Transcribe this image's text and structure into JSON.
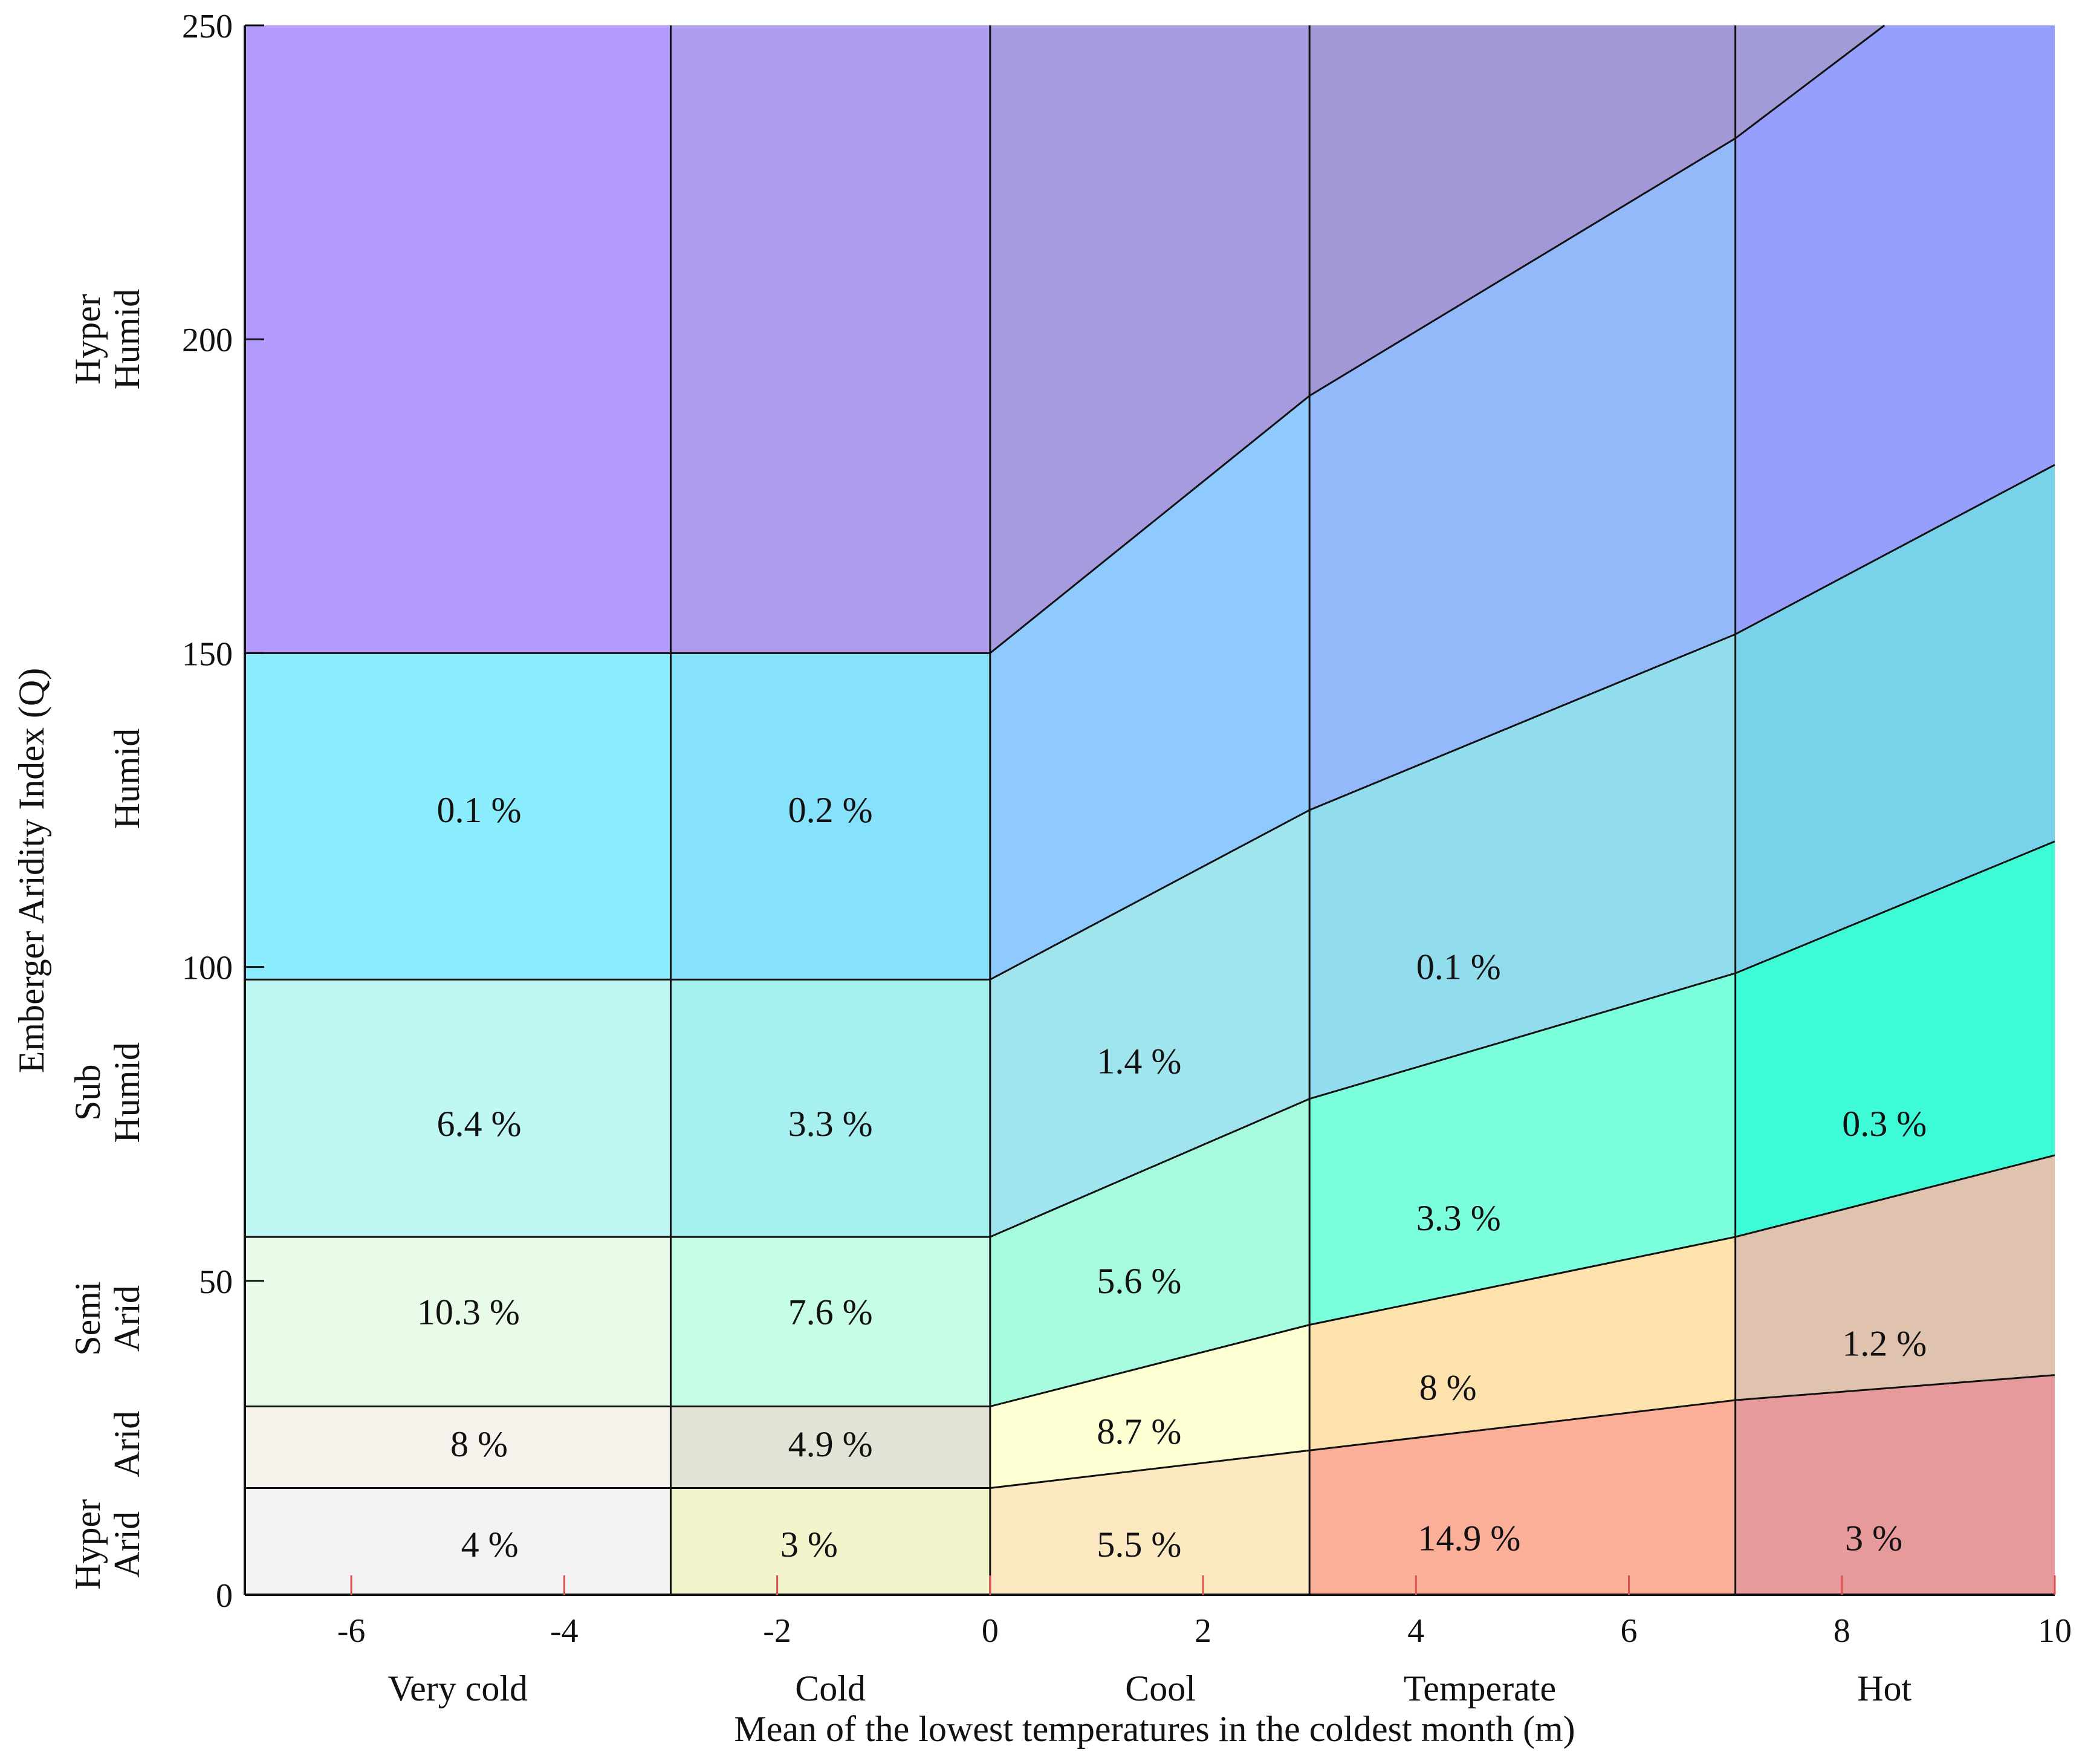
{
  "chart_data": {
    "type": "area",
    "xlabel": "Mean of the lowest temperatures in the coldest month (m)",
    "ylabel": "Emberger Aridity Index (Q)",
    "xlim": [
      -7,
      10
    ],
    "ylim": [
      0,
      250
    ],
    "x_ticks": [
      -6,
      -4,
      -2,
      0,
      2,
      4,
      6,
      8,
      10
    ],
    "y_ticks": [
      0,
      50,
      100,
      150,
      200,
      250
    ],
    "temperature_boundaries": [
      -3,
      0,
      3,
      7
    ],
    "temperature_classes": [
      {
        "name": "Very cold",
        "x": -5
      },
      {
        "name": "Cold",
        "x": -1.5
      },
      {
        "name": "Cool",
        "x": 1.6
      },
      {
        "name": "Temperate",
        "x": 4.6
      },
      {
        "name": "Hot",
        "x": 8.4
      }
    ],
    "aridity_classes": [
      {
        "lines": [
          "Hyper",
          "Arid"
        ],
        "y": 8
      },
      {
        "lines": [
          "Arid"
        ],
        "y": 24
      },
      {
        "lines": [
          "Semi",
          "Arid"
        ],
        "y": 44
      },
      {
        "lines": [
          "Sub",
          "Humid"
        ],
        "y": 80
      },
      {
        "lines": [
          "Humid"
        ],
        "y": 130
      },
      {
        "lines": [
          "Hyper",
          "Humid"
        ],
        "y": 200
      }
    ],
    "boundary_curves": [
      {
        "name": "hyper-arid-arid",
        "points": [
          [
            -7,
            17
          ],
          [
            0,
            17
          ],
          [
            3,
            23
          ],
          [
            7,
            31
          ],
          [
            10,
            35
          ]
        ]
      },
      {
        "name": "arid-semi-arid",
        "points": [
          [
            -7,
            30
          ],
          [
            0,
            30
          ],
          [
            3,
            43
          ],
          [
            7,
            57
          ],
          [
            10,
            70
          ]
        ]
      },
      {
        "name": "semi-arid-sub-humid",
        "points": [
          [
            -7,
            57
          ],
          [
            0,
            57
          ],
          [
            3,
            79
          ],
          [
            7,
            99
          ],
          [
            10,
            120
          ]
        ]
      },
      {
        "name": "sub-humid-humid",
        "points": [
          [
            -7,
            98
          ],
          [
            0,
            98
          ],
          [
            3,
            125
          ],
          [
            7,
            153
          ],
          [
            10,
            180
          ]
        ]
      },
      {
        "name": "humid-hyper-humid",
        "points": [
          [
            -7,
            150
          ],
          [
            0,
            150
          ],
          [
            3,
            191
          ],
          [
            7,
            232
          ],
          [
            8.4,
            250
          ]
        ]
      }
    ],
    "region_colors": [
      [
        "#f3f3f3",
        "#f2f4cb",
        "#fde9c1",
        "#fbae98",
        "#e79a9c"
      ],
      [
        "#f5f3ec",
        "#e2e2d6",
        "#ffffd4",
        "#fde2ad",
        "#dfc3ae"
      ],
      [
        "#e7fbe8",
        "#c5fde5",
        "#a6fbdf",
        "#7cffdc",
        "#3efbd7"
      ],
      [
        "#bef7f4",
        "#a7f0f0",
        "#a0e5ee",
        "#91ddee",
        "#77d2ea"
      ],
      [
        "#8aecfd",
        "#86e1fb",
        "#8ecafd",
        "#93b9fa",
        "#979ffc"
      ],
      [
        "#b39bff",
        "#b09ced",
        "#a69bdf",
        "#a298d6",
        "#a19cd7"
      ]
    ],
    "cell_percentages": [
      {
        "label": "4 %",
        "x": -4.7,
        "y": 8
      },
      {
        "label": "3 %",
        "x": -1.7,
        "y": 8
      },
      {
        "label": "5.5 %",
        "x": 1.4,
        "y": 8
      },
      {
        "label": "14.9 %",
        "x": 4.5,
        "y": 9
      },
      {
        "label": "3 %",
        "x": 8.3,
        "y": 9
      },
      {
        "label": "8 %",
        "x": -4.8,
        "y": 24
      },
      {
        "label": "4.9 %",
        "x": -1.5,
        "y": 24
      },
      {
        "label": "8.7 %",
        "x": 1.4,
        "y": 26
      },
      {
        "label": "8 %",
        "x": 4.3,
        "y": 33
      },
      {
        "label": "1.2 %",
        "x": 8.4,
        "y": 40
      },
      {
        "label": "10.3 %",
        "x": -4.9,
        "y": 45
      },
      {
        "label": "7.6 %",
        "x": -1.5,
        "y": 45
      },
      {
        "label": "5.6 %",
        "x": 1.4,
        "y": 50
      },
      {
        "label": "3.3 %",
        "x": 4.4,
        "y": 60
      },
      {
        "label": "0.3 %",
        "x": 8.4,
        "y": 75
      },
      {
        "label": "6.4 %",
        "x": -4.8,
        "y": 75
      },
      {
        "label": "3.3 %",
        "x": -1.5,
        "y": 75
      },
      {
        "label": "1.4 %",
        "x": 1.4,
        "y": 85
      },
      {
        "label": "0.1 %",
        "x": 4.4,
        "y": 100
      },
      {
        "label": "0.1 %",
        "x": -4.8,
        "y": 125
      },
      {
        "label": "0.2 %",
        "x": -1.5,
        "y": 125
      }
    ]
  }
}
